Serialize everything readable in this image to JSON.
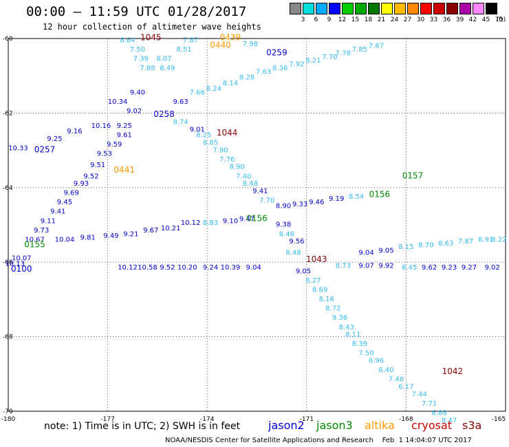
{
  "header": {
    "title": "00:00 – 11:59 UTC 01/28/2017",
    "subtitle": "12 hour collection of altimeter wave heights"
  },
  "colors": {
    "jason2": "#0000cc",
    "jason3": "#008800",
    "altika": "#ff9900",
    "cryosat": "#cc0000",
    "s3a": "#880000",
    "track_label": "#0000cc",
    "swh_cyan": "#33bbee",
    "swh_dark": "#0000cc"
  },
  "scale": {
    "colors": [
      "#888888",
      "#00dddd",
      "#00aaff",
      "#0000ff",
      "#00cc00",
      "#00aa00",
      "#007700",
      "#ffff00",
      "#ffbb00",
      "#ff8800",
      "#ff0000",
      "#cc0000",
      "#880000",
      "#aa00aa",
      "#ff88ff",
      "#000000"
    ],
    "labels": [
      "3",
      "6",
      "9",
      "12",
      "15",
      "18",
      "21",
      "24",
      "27",
      "30",
      "33",
      "36",
      "39",
      "42",
      "45",
      "70",
      "(ft)"
    ]
  },
  "axes": {
    "x_ticks": [
      -180,
      -177,
      -174,
      -171,
      -168,
      -165
    ],
    "y_ticks": [
      -60,
      -62,
      -64,
      -66,
      -68,
      -70
    ]
  },
  "footer": {
    "note": "note:  1) Time is in UTC;  2) SWH is in feet",
    "satellites": [
      "jason2",
      "jason3",
      "altika",
      "cryosat",
      "s3a"
    ],
    "credit": "NOAA/NESDIS Center for Satellite Applications and Research    Feb  1 14:04:07 UTC 2017"
  },
  "track_labels": [
    {
      "text": "1045",
      "lon": -175.7,
      "lat": -60.05,
      "sat": "s3a"
    },
    {
      "text": "0439",
      "lon": -173.3,
      "lat": -60.05,
      "sat": "altika"
    },
    {
      "text": "0440",
      "lon": -173.6,
      "lat": -60.25,
      "sat": "altika"
    },
    {
      "text": "0259",
      "lon": -171.9,
      "lat": -60.45,
      "sat": "jason2"
    },
    {
      "text": "0258",
      "lon": -175.3,
      "lat": -62.1,
      "sat": "jason2"
    },
    {
      "text": "1044",
      "lon": -173.4,
      "lat": -62.6,
      "sat": "s3a"
    },
    {
      "text": "0257",
      "lon": -178.9,
      "lat": -63.05,
      "sat": "jason2"
    },
    {
      "text": "0441",
      "lon": -176.5,
      "lat": -63.6,
      "sat": "altika"
    },
    {
      "text": "0156",
      "lon": -168.8,
      "lat": -64.25,
      "sat": "jason3"
    },
    {
      "text": "0157",
      "lon": -167.8,
      "lat": -63.75,
      "sat": "jason3"
    },
    {
      "text": "0156",
      "lon": -172.5,
      "lat": -64.9,
      "sat": "jason3"
    },
    {
      "text": "0155",
      "lon": -179.2,
      "lat": -65.6,
      "sat": "jason3"
    },
    {
      "text": "0100",
      "lon": -179.6,
      "lat": -66.25,
      "sat": "jason2"
    },
    {
      "text": "1043",
      "lon": -170.7,
      "lat": -66.0,
      "sat": "s3a"
    },
    {
      "text": "1042",
      "lon": -166.6,
      "lat": -69.0,
      "sat": "s3a"
    }
  ],
  "swh_values": [
    {
      "text": "8.64",
      "lon": -176.4,
      "lat": -60.1,
      "c": "swh_cyan"
    },
    {
      "text": "7.87",
      "lon": -174.5,
      "lat": -60.1,
      "c": "swh_cyan"
    },
    {
      "text": "7.98",
      "lon": -172.7,
      "lat": -60.2,
      "c": "swh_cyan"
    },
    {
      "text": "7.50",
      "lon": -176.1,
      "lat": -60.35,
      "c": "swh_cyan"
    },
    {
      "text": "8.51",
      "lon": -174.7,
      "lat": -60.35,
      "c": "swh_cyan"
    },
    {
      "text": "7.39",
      "lon": -176.0,
      "lat": -60.6,
      "c": "swh_cyan"
    },
    {
      "text": "8.07",
      "lon": -175.3,
      "lat": -60.6,
      "c": "swh_cyan"
    },
    {
      "text": "7.88",
      "lon": -175.8,
      "lat": -60.85,
      "c": "swh_cyan"
    },
    {
      "text": "8.49",
      "lon": -175.2,
      "lat": -60.85,
      "c": "swh_cyan"
    },
    {
      "text": "9.40",
      "lon": -176.1,
      "lat": -61.5,
      "c": "swh_dark"
    },
    {
      "text": "10.34",
      "lon": -176.7,
      "lat": -61.75,
      "c": "swh_dark"
    },
    {
      "text": "9.02",
      "lon": -176.2,
      "lat": -62.0,
      "c": "swh_dark"
    },
    {
      "text": "9.63",
      "lon": -174.8,
      "lat": -61.75,
      "c": "swh_dark"
    },
    {
      "text": "8.74",
      "lon": -174.8,
      "lat": -62.3,
      "c": "swh_cyan"
    },
    {
      "text": "9.01",
      "lon": -174.3,
      "lat": -62.5,
      "c": "swh_dark"
    },
    {
      "text": "8.25",
      "lon": -174.1,
      "lat": -62.65,
      "c": "swh_cyan"
    },
    {
      "text": "8.85",
      "lon": -173.9,
      "lat": -62.85,
      "c": "swh_cyan"
    },
    {
      "text": "7.90",
      "lon": -173.6,
      "lat": -63.05,
      "c": "swh_cyan"
    },
    {
      "text": "7.76",
      "lon": -173.4,
      "lat": -63.3,
      "c": "swh_cyan"
    },
    {
      "text": "8.90",
      "lon": -173.1,
      "lat": -63.5,
      "c": "swh_cyan"
    },
    {
      "text": "7.40",
      "lon": -172.9,
      "lat": -63.75,
      "c": "swh_cyan"
    },
    {
      "text": "8.48",
      "lon": -172.7,
      "lat": -63.95,
      "c": "swh_cyan"
    },
    {
      "text": "9.41",
      "lon": -172.4,
      "lat": -64.15,
      "c": "swh_dark"
    },
    {
      "text": "7.70",
      "lon": -172.2,
      "lat": -64.4,
      "c": "swh_cyan"
    },
    {
      "text": "9.38",
      "lon": -171.7,
      "lat": -65.05,
      "c": "swh_dark"
    },
    {
      "text": "8.48",
      "lon": -171.6,
      "lat": -65.3,
      "c": "swh_cyan"
    },
    {
      "text": "9.56",
      "lon": -171.3,
      "lat": -65.5,
      "c": "swh_dark"
    },
    {
      "text": "8.27",
      "lon": -170.8,
      "lat": -66.55,
      "c": "swh_cyan"
    },
    {
      "text": "8.69",
      "lon": -170.6,
      "lat": -66.8,
      "c": "swh_cyan"
    },
    {
      "text": "8.16",
      "lon": -170.4,
      "lat": -67.05,
      "c": "swh_cyan"
    },
    {
      "text": "8.72",
      "lon": -170.2,
      "lat": -67.3,
      "c": "swh_cyan"
    },
    {
      "text": "9.36",
      "lon": -170.0,
      "lat": -67.55,
      "c": "swh_cyan"
    },
    {
      "text": "8.43",
      "lon": -169.8,
      "lat": -67.8,
      "c": "swh_cyan"
    },
    {
      "text": "8.11",
      "lon": -169.6,
      "lat": -68.0,
      "c": "swh_cyan"
    },
    {
      "text": "8.39",
      "lon": -169.4,
      "lat": -68.25,
      "c": "swh_cyan"
    },
    {
      "text": "7.50",
      "lon": -169.2,
      "lat": -68.5,
      "c": "swh_cyan"
    },
    {
      "text": "6.96",
      "lon": -168.9,
      "lat": -68.7,
      "c": "swh_cyan"
    },
    {
      "text": "6.40",
      "lon": -168.6,
      "lat": -68.95,
      "c": "swh_cyan"
    },
    {
      "text": "7.46",
      "lon": -168.3,
      "lat": -69.2,
      "c": "swh_cyan"
    },
    {
      "text": "6.17",
      "lon": -168.0,
      "lat": -69.4,
      "c": "swh_cyan"
    },
    {
      "text": "7.44",
      "lon": -167.6,
      "lat": -69.6,
      "c": "swh_cyan"
    },
    {
      "text": "7.71",
      "lon": -167.3,
      "lat": -69.85,
      "c": "swh_cyan"
    },
    {
      "text": "6.88",
      "lon": -167.0,
      "lat": -70.1,
      "c": "swh_cyan"
    },
    {
      "text": "8.47",
      "lon": -166.7,
      "lat": -70.3,
      "c": "swh_cyan"
    },
    {
      "text": "9.25",
      "lon": -178.6,
      "lat": -62.75,
      "c": "swh_dark"
    },
    {
      "text": "9.16",
      "lon": -178.0,
      "lat": -62.55,
      "c": "swh_dark"
    },
    {
      "text": "10.16",
      "lon": -177.2,
      "lat": -62.4,
      "c": "swh_dark"
    },
    {
      "text": "9.25",
      "lon": -176.5,
      "lat": -62.4,
      "c": "swh_dark"
    },
    {
      "text": "9.61",
      "lon": -176.5,
      "lat": -62.65,
      "c": "swh_dark"
    },
    {
      "text": "9.59",
      "lon": -176.8,
      "lat": -62.9,
      "c": "swh_dark"
    },
    {
      "text": "9.53",
      "lon": -177.1,
      "lat": -63.15,
      "c": "swh_dark"
    },
    {
      "text": "9.51",
      "lon": -177.3,
      "lat": -63.45,
      "c": "swh_dark"
    },
    {
      "text": "9.52",
      "lon": -177.5,
      "lat": -63.75,
      "c": "swh_dark"
    },
    {
      "text": "9.93",
      "lon": -177.8,
      "lat": -63.95,
      "c": "swh_dark"
    },
    {
      "text": "9.69",
      "lon": -178.1,
      "lat": -64.2,
      "c": "swh_dark"
    },
    {
      "text": "9.45",
      "lon": -178.3,
      "lat": -64.45,
      "c": "swh_dark"
    },
    {
      "text": "9.41",
      "lon": -178.5,
      "lat": -64.7,
      "c": "swh_dark"
    },
    {
      "text": "9.11",
      "lon": -178.8,
      "lat": -64.95,
      "c": "swh_dark"
    },
    {
      "text": "9.73",
      "lon": -179.0,
      "lat": -65.2,
      "c": "swh_dark"
    },
    {
      "text": "10.67",
      "lon": -179.2,
      "lat": -65.45,
      "c": "swh_dark"
    },
    {
      "text": "10.07",
      "lon": -179.6,
      "lat": -65.95,
      "c": "swh_dark"
    },
    {
      "text": "10.13",
      "lon": -179.8,
      "lat": -66.1,
      "c": "swh_dark"
    },
    {
      "text": "10.33",
      "lon": -179.7,
      "lat": -63.0,
      "c": "swh_dark"
    },
    {
      "text": "10.04",
      "lon": -178.3,
      "lat": -65.45,
      "c": "swh_dark"
    },
    {
      "text": "9.81",
      "lon": -177.6,
      "lat": -65.4,
      "c": "swh_dark"
    },
    {
      "text": "9.49",
      "lon": -176.9,
      "lat": -65.35,
      "c": "swh_dark"
    },
    {
      "text": "9.21",
      "lon": -176.3,
      "lat": -65.3,
      "c": "swh_dark"
    },
    {
      "text": "9.67",
      "lon": -175.7,
      "lat": -65.2,
      "c": "swh_dark"
    },
    {
      "text": "10.21",
      "lon": -175.1,
      "lat": -65.15,
      "c": "swh_dark"
    },
    {
      "text": "10.12",
      "lon": -174.5,
      "lat": -65.0,
      "c": "swh_dark"
    },
    {
      "text": "8.83",
      "lon": -173.9,
      "lat": -65.0,
      "c": "swh_cyan"
    },
    {
      "text": "9.10",
      "lon": -173.3,
      "lat": -64.95,
      "c": "swh_dark"
    },
    {
      "text": "9.47",
      "lon": -172.8,
      "lat": -64.9,
      "c": "swh_dark"
    },
    {
      "text": "8.90",
      "lon": -171.7,
      "lat": -64.55,
      "c": "swh_dark"
    },
    {
      "text": "9.33",
      "lon": -171.2,
      "lat": -64.5,
      "c": "swh_dark"
    },
    {
      "text": "9.46",
      "lon": -170.7,
      "lat": -64.45,
      "c": "swh_dark"
    },
    {
      "text": "9.19",
      "lon": -170.1,
      "lat": -64.35,
      "c": "swh_dark"
    },
    {
      "text": "8.54",
      "lon": -169.5,
      "lat": -64.3,
      "c": "swh_cyan"
    },
    {
      "text": "10.12",
      "lon": -176.4,
      "lat": -66.2,
      "c": "swh_dark"
    },
    {
      "text": "10.58",
      "lon": -175.8,
      "lat": -66.2,
      "c": "swh_dark"
    },
    {
      "text": "9.52",
      "lon": -175.2,
      "lat": -66.2,
      "c": "swh_dark"
    },
    {
      "text": "10.20",
      "lon": -174.6,
      "lat": -66.2,
      "c": "swh_dark"
    },
    {
      "text": "9.24",
      "lon": -173.9,
      "lat": -66.2,
      "c": "swh_dark"
    },
    {
      "text": "10.39",
      "lon": -173.3,
      "lat": -66.2,
      "c": "swh_dark"
    },
    {
      "text": "9.04",
      "lon": -172.6,
      "lat": -66.2,
      "c": "swh_dark"
    },
    {
      "text": "8.48",
      "lon": -171.4,
      "lat": -65.8,
      "c": "swh_cyan"
    },
    {
      "text": "9.05",
      "lon": -171.1,
      "lat": -66.3,
      "c": "swh_dark"
    },
    {
      "text": "9.04",
      "lon": -169.2,
      "lat": -65.8,
      "c": "swh_dark"
    },
    {
      "text": "9.05",
      "lon": -168.6,
      "lat": -65.75,
      "c": "swh_dark"
    },
    {
      "text": "8.15",
      "lon": -168.0,
      "lat": -65.65,
      "c": "swh_cyan"
    },
    {
      "text": "8.70",
      "lon": -167.4,
      "lat": -65.6,
      "c": "swh_cyan"
    },
    {
      "text": "8.63",
      "lon": -166.8,
      "lat": -65.55,
      "c": "swh_cyan"
    },
    {
      "text": "7.87",
      "lon": -166.2,
      "lat": -65.5,
      "c": "swh_cyan"
    },
    {
      "text": "8.91",
      "lon": -165.6,
      "lat": -65.45,
      "c": "swh_cyan"
    },
    {
      "text": "8.22",
      "lon": -165.2,
      "lat": -65.45,
      "c": "swh_cyan"
    },
    {
      "text": "8.73",
      "lon": -169.9,
      "lat": -66.15,
      "c": "swh_cyan"
    },
    {
      "text": "9.07",
      "lon": -169.2,
      "lat": -66.15,
      "c": "swh_dark"
    },
    {
      "text": "9.92",
      "lon": -168.6,
      "lat": -66.15,
      "c": "swh_dark"
    },
    {
      "text": "8.45",
      "lon": -167.9,
      "lat": -66.2,
      "c": "swh_cyan"
    },
    {
      "text": "9.62",
      "lon": -167.3,
      "lat": -66.2,
      "c": "swh_dark"
    },
    {
      "text": "9.23",
      "lon": -166.7,
      "lat": -66.2,
      "c": "swh_dark"
    },
    {
      "text": "9.27",
      "lon": -166.1,
      "lat": -66.2,
      "c": "swh_dark"
    },
    {
      "text": "9.02",
      "lon": -165.4,
      "lat": -66.2,
      "c": "swh_dark"
    },
    {
      "text": "7.66",
      "lon": -174.3,
      "lat": -61.5,
      "c": "swh_cyan"
    },
    {
      "text": "8.24",
      "lon": -173.8,
      "lat": -61.4,
      "c": "swh_cyan"
    },
    {
      "text": "8.14",
      "lon": -173.3,
      "lat": -61.25,
      "c": "swh_cyan"
    },
    {
      "text": "8.28",
      "lon": -172.8,
      "lat": -61.1,
      "c": "swh_cyan"
    },
    {
      "text": "7.63",
      "lon": -172.3,
      "lat": -60.95,
      "c": "swh_cyan"
    },
    {
      "text": "8.36",
      "lon": -171.8,
      "lat": -60.85,
      "c": "swh_cyan"
    },
    {
      "text": "7.92",
      "lon": -171.3,
      "lat": -60.75,
      "c": "swh_cyan"
    },
    {
      "text": "8.21",
      "lon": -170.8,
      "lat": -60.65,
      "c": "swh_cyan"
    },
    {
      "text": "7.70",
      "lon": -170.3,
      "lat": -60.55,
      "c": "swh_cyan"
    },
    {
      "text": "7.78",
      "lon": -169.9,
      "lat": -60.45,
      "c": "swh_cyan"
    },
    {
      "text": "7.85",
      "lon": -169.4,
      "lat": -60.35,
      "c": "swh_cyan"
    },
    {
      "text": "7.67",
      "lon": -168.9,
      "lat": -60.25,
      "c": "swh_cyan"
    }
  ]
}
